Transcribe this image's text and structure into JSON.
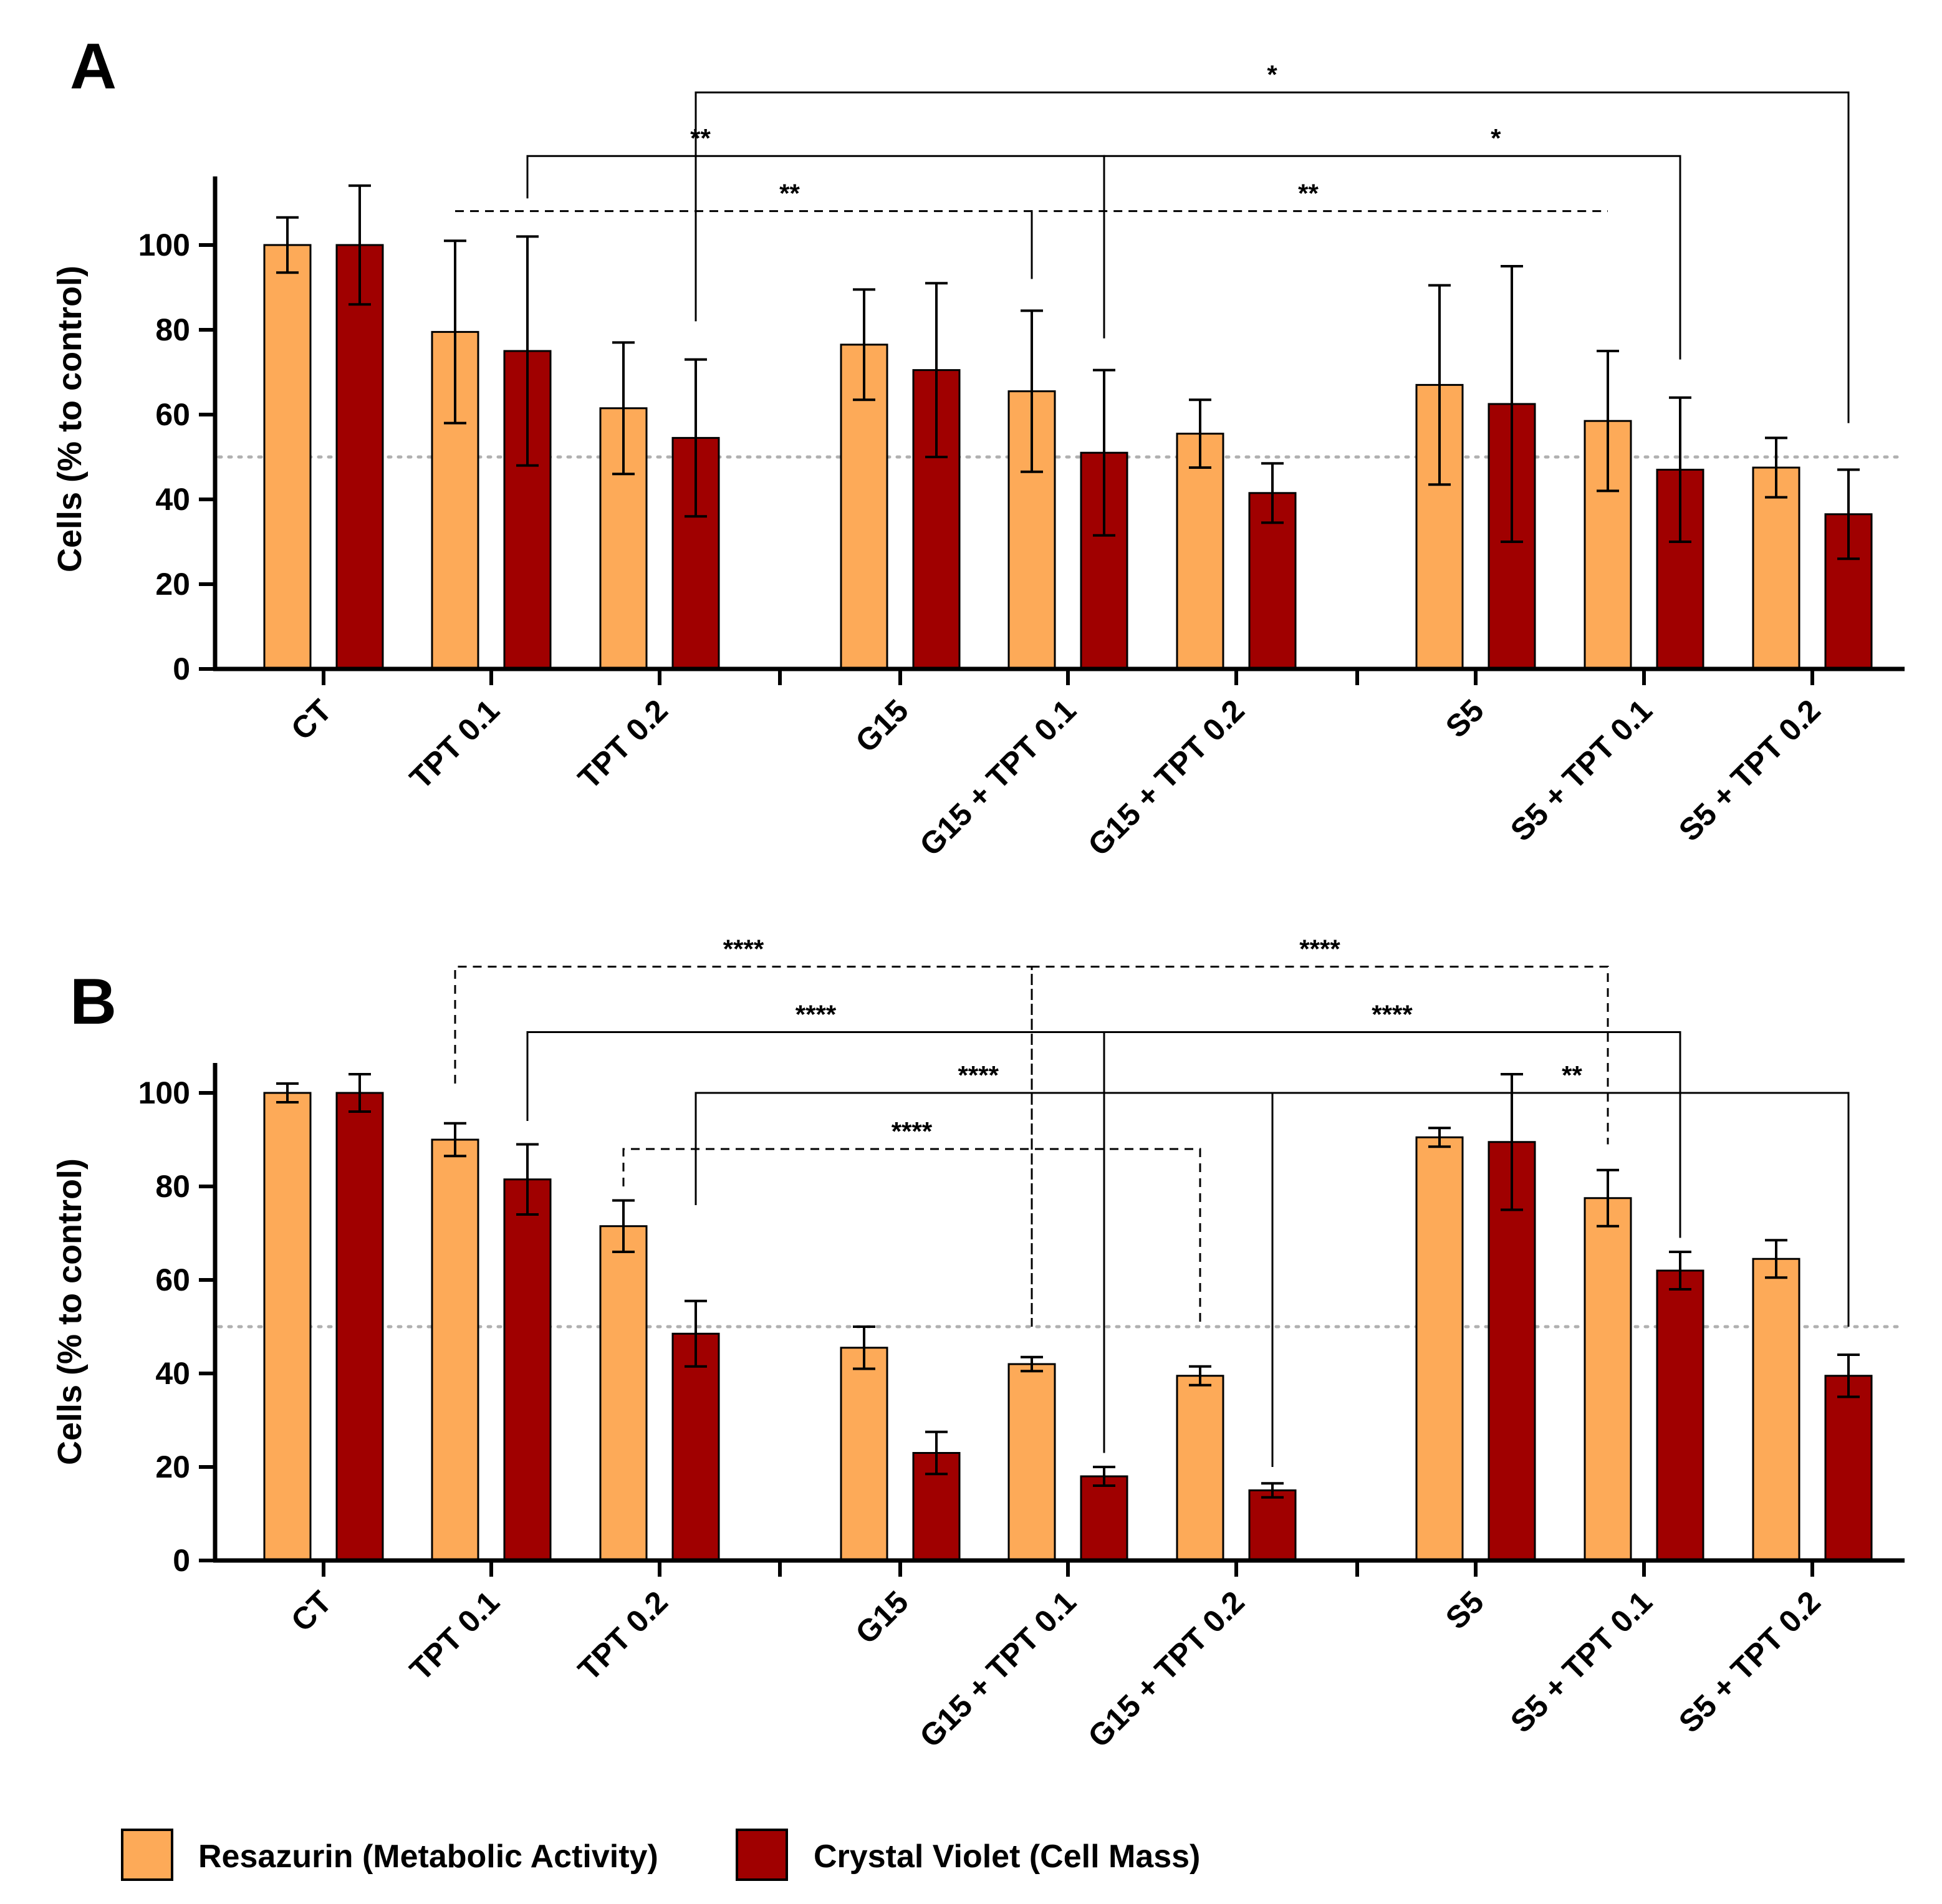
{
  "legend": {
    "items": [
      {
        "label": "Resazurin (Metabolic Activity)",
        "color": "#fdaa58"
      },
      {
        "label": "Crystal Violet (Cell Mass)",
        "color": "#a00000"
      }
    ]
  },
  "chart_data": [
    {
      "panel": "A",
      "type": "bar",
      "ylabel": "Cells (% to control)",
      "ylim": [
        0,
        115
      ],
      "yticks": [
        0,
        20,
        40,
        60,
        80,
        100
      ],
      "reference_line": 50,
      "categories": [
        "CT",
        "TPT 0.1",
        "TPT 0.2",
        "G15",
        "G15 + TPT 0.1",
        "G15 + TPT 0.2",
        "S5",
        "S5 + TPT 0.1",
        "S5 + TPT 0.2"
      ],
      "groups": [
        [
          0,
          1,
          2
        ],
        [
          3,
          4,
          5
        ],
        [
          6,
          7,
          8
        ]
      ],
      "series": [
        {
          "name": "Resazurin (Metabolic Activity)",
          "values": [
            100,
            79.5,
            61.5,
            76.5,
            65.5,
            55.5,
            67,
            58.5,
            47.5
          ],
          "errors": [
            6.5,
            21.5,
            15.5,
            13,
            19,
            8,
            23.5,
            16.5,
            7
          ]
        },
        {
          "name": "Crystal Violet (Cell Mass)",
          "values": [
            100,
            75,
            54.5,
            70.5,
            51,
            41.5,
            62.5,
            47,
            36.5
          ],
          "errors": [
            14,
            27,
            18.5,
            20.5,
            19.5,
            7,
            32.5,
            17,
            10.5
          ]
        }
      ],
      "significance": [
        {
          "label": "*",
          "style": "solid",
          "from": {
            "category": 2,
            "series": 1,
            "value": 82
          },
          "to": {
            "category": 8,
            "series": 1,
            "value": 58
          },
          "level": 136
        },
        {
          "label": "**",
          "style": "solid",
          "from": {
            "category": 1,
            "series": 1,
            "value": 111
          },
          "to": {
            "category": 4,
            "series": 1,
            "value": 78
          },
          "level": 121,
          "label_at": 0.3
        },
        {
          "label": "*",
          "style": "solid",
          "from": {
            "category": 4,
            "series": 1,
            "value": 78
          },
          "to": {
            "category": 7,
            "series": 1,
            "value": 73
          },
          "level": 121,
          "label_at": 0.68
        },
        {
          "label": "**",
          "style": "dashed",
          "from": {
            "category": 1,
            "series": 0,
            "value": 108
          },
          "to": {
            "category": 4,
            "series": 0,
            "value": 92
          },
          "level": 108,
          "label_at": 0.58
        },
        {
          "label": "**",
          "style": "dashed",
          "from": {
            "category": 4,
            "series": 0,
            "value": 92
          },
          "to": {
            "category": 7,
            "series": 0,
            "value": 108
          },
          "level": 108,
          "label_at": 0.48
        }
      ]
    },
    {
      "panel": "B",
      "type": "bar",
      "ylabel": "Cells (% to control)",
      "ylim": [
        0,
        106
      ],
      "yticks": [
        0,
        20,
        40,
        60,
        80,
        100
      ],
      "reference_line": 50,
      "categories": [
        "CT",
        "TPT 0.1",
        "TPT 0.2",
        "G15",
        "G15 + TPT 0.1",
        "G15 + TPT 0.2",
        "S5",
        "S5 + TPT 0.1",
        "S5 + TPT 0.2"
      ],
      "groups": [
        [
          0,
          1,
          2
        ],
        [
          3,
          4,
          5
        ],
        [
          6,
          7,
          8
        ]
      ],
      "series": [
        {
          "name": "Resazurin (Metabolic Activity)",
          "values": [
            100,
            90,
            71.5,
            45.5,
            42,
            39.5,
            90.5,
            77.5,
            64.5
          ],
          "errors": [
            2,
            3.5,
            5.5,
            4.5,
            1.5,
            2,
            2,
            6,
            4
          ]
        },
        {
          "name": "Crystal Violet (Cell Mass)",
          "values": [
            100,
            81.5,
            48.5,
            23,
            18,
            15,
            89.5,
            62,
            39.5
          ],
          "errors": [
            4,
            7.5,
            7,
            4.5,
            2,
            1.5,
            14.5,
            4,
            4.5
          ]
        }
      ],
      "significance": [
        {
          "label": "****",
          "style": "dashed",
          "from": {
            "category": 1,
            "series": 0,
            "value": 102
          },
          "to": {
            "category": 4,
            "series": 0,
            "value": 50
          },
          "level": 127,
          "label_at": 0.5
        },
        {
          "label": "****",
          "style": "dashed",
          "from": {
            "category": 4,
            "series": 0,
            "value": 50
          },
          "to": {
            "category": 7,
            "series": 0,
            "value": 89
          },
          "level": 127,
          "label_at": 0.5
        },
        {
          "label": "****",
          "style": "solid",
          "from": {
            "category": 1,
            "series": 1,
            "value": 94
          },
          "to": {
            "category": 4,
            "series": 1,
            "value": 23
          },
          "level": 113,
          "label_at": 0.5
        },
        {
          "label": "****",
          "style": "solid",
          "from": {
            "category": 4,
            "series": 1,
            "value": 23
          },
          "to": {
            "category": 7,
            "series": 1,
            "value": 69
          },
          "level": 113,
          "label_at": 0.5
        },
        {
          "label": "****",
          "style": "solid",
          "from": {
            "category": 2,
            "series": 1,
            "value": 76
          },
          "to": {
            "category": 5,
            "series": 1,
            "value": 20
          },
          "level": 100,
          "label_at": 0.49
        },
        {
          "label": "**",
          "style": "solid",
          "from": {
            "category": 5,
            "series": 1,
            "value": 20
          },
          "to": {
            "category": 8,
            "series": 1,
            "value": 50
          },
          "level": 100,
          "label_at": 0.52
        },
        {
          "label": "****",
          "style": "dashed",
          "from": {
            "category": 2,
            "series": 0,
            "value": 80
          },
          "to": {
            "category": 5,
            "series": 0,
            "value": 50
          },
          "level": 88,
          "label_at": 0.5
        }
      ]
    }
  ]
}
